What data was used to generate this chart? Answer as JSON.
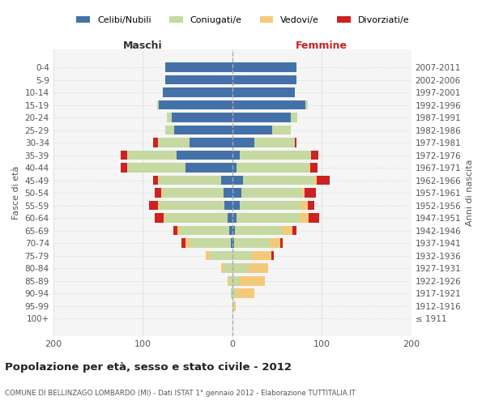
{
  "age_groups": [
    "100+",
    "95-99",
    "90-94",
    "85-89",
    "80-84",
    "75-79",
    "70-74",
    "65-69",
    "60-64",
    "55-59",
    "50-54",
    "45-49",
    "40-44",
    "35-39",
    "30-34",
    "25-29",
    "20-24",
    "15-19",
    "10-14",
    "5-9",
    "0-4"
  ],
  "birth_years": [
    "≤ 1911",
    "1912-1916",
    "1917-1921",
    "1922-1926",
    "1927-1931",
    "1932-1936",
    "1937-1941",
    "1942-1946",
    "1947-1951",
    "1952-1956",
    "1957-1961",
    "1962-1966",
    "1967-1971",
    "1972-1976",
    "1977-1981",
    "1982-1986",
    "1987-1991",
    "1992-1996",
    "1997-2001",
    "2002-2006",
    "2007-2011"
  ],
  "m_celibi": [
    0,
    0,
    0,
    0,
    0,
    0,
    2,
    3,
    5,
    9,
    10,
    12,
    52,
    62,
    48,
    65,
    68,
    82,
    78,
    75,
    75
  ],
  "m_coniugati": [
    0,
    0,
    2,
    3,
    10,
    25,
    45,
    55,
    70,
    72,
    68,
    70,
    65,
    55,
    35,
    10,
    5,
    2,
    0,
    0,
    0
  ],
  "m_vedovi": [
    0,
    0,
    0,
    2,
    2,
    5,
    5,
    3,
    2,
    2,
    1,
    1,
    0,
    0,
    0,
    0,
    0,
    0,
    0,
    0,
    0
  ],
  "m_divorziati": [
    0,
    0,
    0,
    0,
    0,
    0,
    5,
    5,
    10,
    10,
    8,
    5,
    8,
    8,
    5,
    0,
    0,
    0,
    0,
    0,
    0
  ],
  "f_nubili": [
    0,
    0,
    0,
    0,
    0,
    0,
    2,
    3,
    5,
    8,
    10,
    12,
    5,
    8,
    25,
    45,
    65,
    82,
    70,
    72,
    72
  ],
  "f_coniugate": [
    0,
    2,
    5,
    8,
    18,
    22,
    40,
    52,
    70,
    68,
    68,
    80,
    80,
    80,
    45,
    20,
    8,
    2,
    0,
    0,
    0
  ],
  "f_vedove": [
    0,
    2,
    20,
    28,
    22,
    22,
    12,
    12,
    10,
    8,
    3,
    2,
    2,
    0,
    0,
    0,
    0,
    0,
    0,
    0,
    0
  ],
  "f_divorziate": [
    0,
    0,
    0,
    0,
    0,
    2,
    2,
    5,
    12,
    8,
    12,
    15,
    8,
    8,
    2,
    0,
    0,
    0,
    0,
    0,
    0
  ],
  "colors": {
    "celibi": "#4472a8",
    "coniugati": "#c5d9a0",
    "vedovi": "#f5c97a",
    "divorziati": "#cc2222"
  },
  "xlim": 200,
  "title": "Popolazione per età, sesso e stato civile - 2012",
  "subtitle": "COMUNE DI BELLINZAGO LOMBARDO (MI) - Dati ISTAT 1° gennaio 2012 - Elaborazione TUTTITALIA.IT",
  "ylabel_left": "Fasce di età",
  "ylabel_right": "Anni di nascita",
  "xlabel_left": "Maschi",
  "xlabel_right": "Femmine",
  "background_color": "#ffffff",
  "grid_color": "#cccccc",
  "legend_labels": [
    "Celibi/Nubili",
    "Coniugati/e",
    "Vedovi/e",
    "Divorziati/e"
  ]
}
